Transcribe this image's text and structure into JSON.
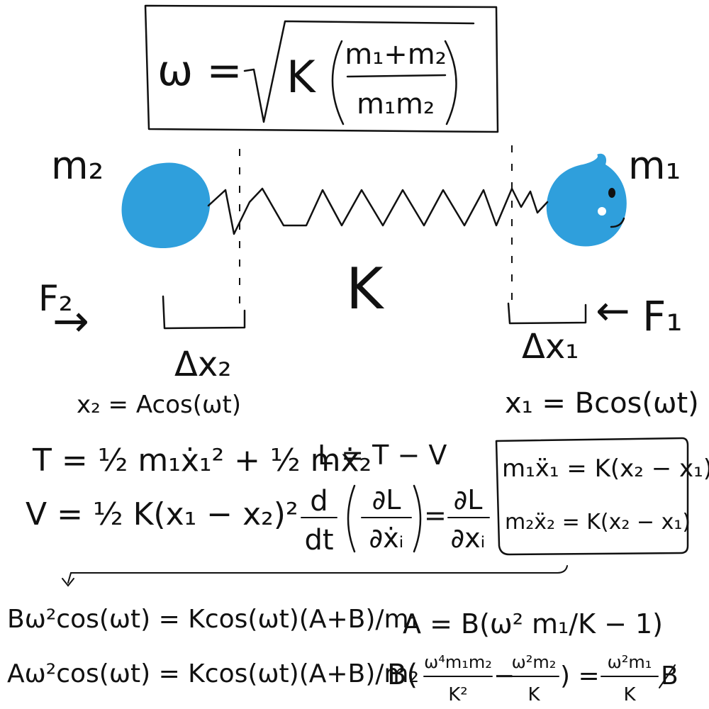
{
  "colors": {
    "ink": "#111111",
    "mass": "#2f9fdc",
    "background": "#ffffff"
  },
  "formula_box": {
    "lhs": "ω =",
    "k": "K",
    "numerator": "m₁+m₂",
    "denominator": "m₁m₂"
  },
  "masses": {
    "left_label": "m₂",
    "right_label": "m₁",
    "right_face": "smiley-face-icon"
  },
  "spring": {
    "label": "K"
  },
  "forces": {
    "left_label": "F₂",
    "right_label": "F₁",
    "left_arrow": "→",
    "right_arrow": "←"
  },
  "displacements": {
    "left_label": "Δx₂",
    "right_label": "Δx₁",
    "left_eq": "x₂ = Acos(ωt)",
    "right_eq": "x₁ = Bcos(ωt)"
  },
  "energy": {
    "kinetic": "T = ½ m₁ẋ₁² + ½ mẋ₂",
    "potential": "V = ½ K(x₁ − x₂)²",
    "lagrangian": "L = T − V"
  },
  "euler_lagrange": {
    "d": "d",
    "dt": "dt",
    "dL1": "∂L",
    "dxdot": "∂ẋᵢ",
    "equals": "=",
    "dL2": "∂L",
    "dx": "∂xᵢ"
  },
  "eom_box": {
    "line1": "m₁ẍ₁ = K(x₂ − x₁)",
    "line2": "m₂ẍ₂ = K(x₂ − x₁)"
  },
  "derivation": {
    "line1": "Bω²cos(ωt) = Kcos(ωt)(A+B)/m₁",
    "line2": "Aω²cos(ωt) = Kcos(ωt)(A+B)/m₂",
    "a_eq": "A = B(ω² m₁/K − 1)",
    "b_open": "B(",
    "f1_num": "ω⁴m₁m₂",
    "f1_den": "K²",
    "minus": "−",
    "f2_num": "ω²m₂",
    "f2_den": "K",
    "close_eq": ") =",
    "f3_num": "ω²m₁",
    "f3_den": "K",
    "b_tail": "B"
  }
}
